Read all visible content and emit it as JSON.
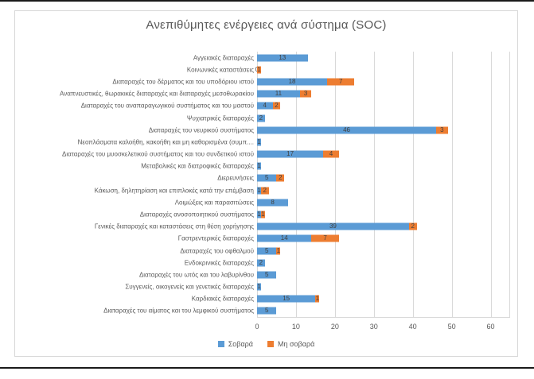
{
  "chart_data": {
    "type": "bar",
    "orientation": "horizontal",
    "stacked": true,
    "title": "Ανεπιθύμητες ενέργειες ανά σύστημα (SOC)",
    "categories": [
      "Αγγειακές διαταραχές",
      "Κοινωνικές καταστάσεις",
      "Διαταραχές του δέρματος και του υποδόριου ιστού",
      "Αναπνευστικές, θωρακικές διαταραχές και διαταραχές μεσοθωρακίου",
      "Διαταραχές του αναπαραγωγικού συστήματος και του μαστού",
      "Ψυχιατρικές διαταραχές",
      "Διαταραχές του νευρικού συστήματος",
      "Νεοπλάσματα καλοήθη, κακοήθη και μη καθορισμένα (συμπ....",
      "Διαταραχές του μυοσκελετικού συστήματος και του συνδετικού ιστού",
      "Μεταβολικές και διατροφικές διαταραχές",
      "Διερευνήσεις",
      "Κάκωση, δηλητηρίαση και επιπλοκές κατά την επέμβαση",
      "Λοιμώξεις και παρασιτώσεις",
      "Διαταραχές ανοσοποιητικού συστήματος",
      "Γενικές διαταραχές και καταστάσεις στη θέση χορήγησης",
      "Γαστρεντερικές διαταραχές",
      "Διαταραχές του οφθαλμού",
      "Ενδοκρινικές διαταραχές",
      "Διαταραχές του ωτός και του λαβυρίνθου",
      "Συγγενείς, οικογενείς και γενετικές διαταραχές",
      "Καρδιακές διαταραχές",
      "Διαταραχές του αίματος και του λεμφικού συστήματος"
    ],
    "series": [
      {
        "name": "Σοβαρά",
        "color": "#5B9BD5",
        "values": [
          13,
          0,
          18,
          11,
          4,
          2,
          46,
          1,
          17,
          1,
          5,
          1,
          8,
          1,
          39,
          14,
          5,
          2,
          5,
          1,
          15,
          5
        ]
      },
      {
        "name": "Μη σοβαρά",
        "color": "#ED7D31",
        "values": [
          null,
          1,
          7,
          3,
          2,
          null,
          3,
          null,
          4,
          null,
          2,
          2,
          null,
          1,
          2,
          7,
          1,
          null,
          null,
          null,
          1,
          null
        ]
      }
    ],
    "x_ticks": [
      0,
      10,
      20,
      30,
      40,
      50,
      60
    ],
    "xlim": [
      0,
      65
    ],
    "grid": true,
    "legend_position": "bottom",
    "label_color": "#404040",
    "axis_text_color": "#595959",
    "gridline_color": "#d9d9d9"
  }
}
